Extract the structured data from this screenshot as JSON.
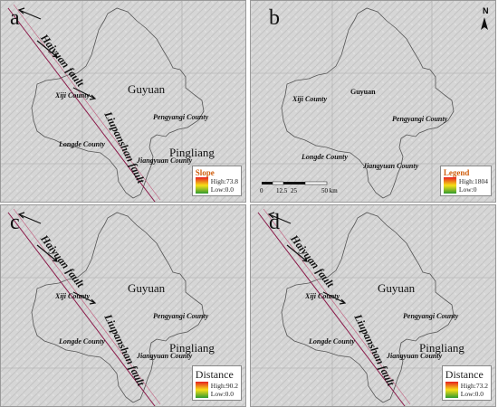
{
  "panels": {
    "a": {
      "letter": "a",
      "labels": {
        "haiyuan_fault": "Haiyuan fault",
        "liupanshan_fault": "Liupanshan fault",
        "guyuan": "Guyuan",
        "xiji": "Xiji County",
        "pengyang": "Pengyangi County",
        "longde": "Longde County",
        "pingliang": "Pingliang",
        "jiangyuan": "Jiangyuan County"
      },
      "legend": {
        "title": "Slope",
        "high": "High:73.8",
        "low": "Low:0.0"
      }
    },
    "b": {
      "letter": "b",
      "labels": {
        "xiji": "Xiji County",
        "guyuan": "Guyuan",
        "pengyang": "Pengyangi County",
        "longde": "Longde County",
        "jiangyuan": "Jiangyuan County"
      },
      "scale": {
        "t0": "0",
        "t1": "12.5",
        "t2": "25",
        "t3": "50 km"
      },
      "north": "N",
      "legend": {
        "title": "Legend",
        "high": "High:1804",
        "low": "Low:0"
      }
    },
    "c": {
      "letter": "c",
      "labels": {
        "haiyuan_fault": "Haiyuan fault",
        "liupanshan_fault": "Liupanshan fault",
        "guyuan": "Guyuan",
        "xiji": "Xiji County",
        "pengyang": "Pengyangi County",
        "longde": "Longde County",
        "pingliang": "Pingliang",
        "jiangyuan": "Jiangyuan County"
      },
      "legend": {
        "title": "Distance",
        "high": "High:90.2",
        "low": "Low:0.0"
      }
    },
    "d": {
      "letter": "d",
      "labels": {
        "haiyuan_fault": "Haiyuan fault",
        "liupanshan_fault": "Liupanshan fault",
        "guyuan": "Guyuan",
        "xiji": "Xiji County",
        "pengyang": "Pengyangi County",
        "longde": "Longde County",
        "pingliang": "Pingliang",
        "jiangyuan": "Jiangyuan County"
      },
      "legend": {
        "title": "Distance",
        "high": "High:73.2",
        "low": "Low:0.0"
      }
    }
  },
  "colors": {
    "ramp_high": "#e62020",
    "ramp_mid": "#f7e018",
    "ramp_low": "#2f9a30",
    "fault_line": "#8b1a4a",
    "background": "#d9d9d9"
  }
}
